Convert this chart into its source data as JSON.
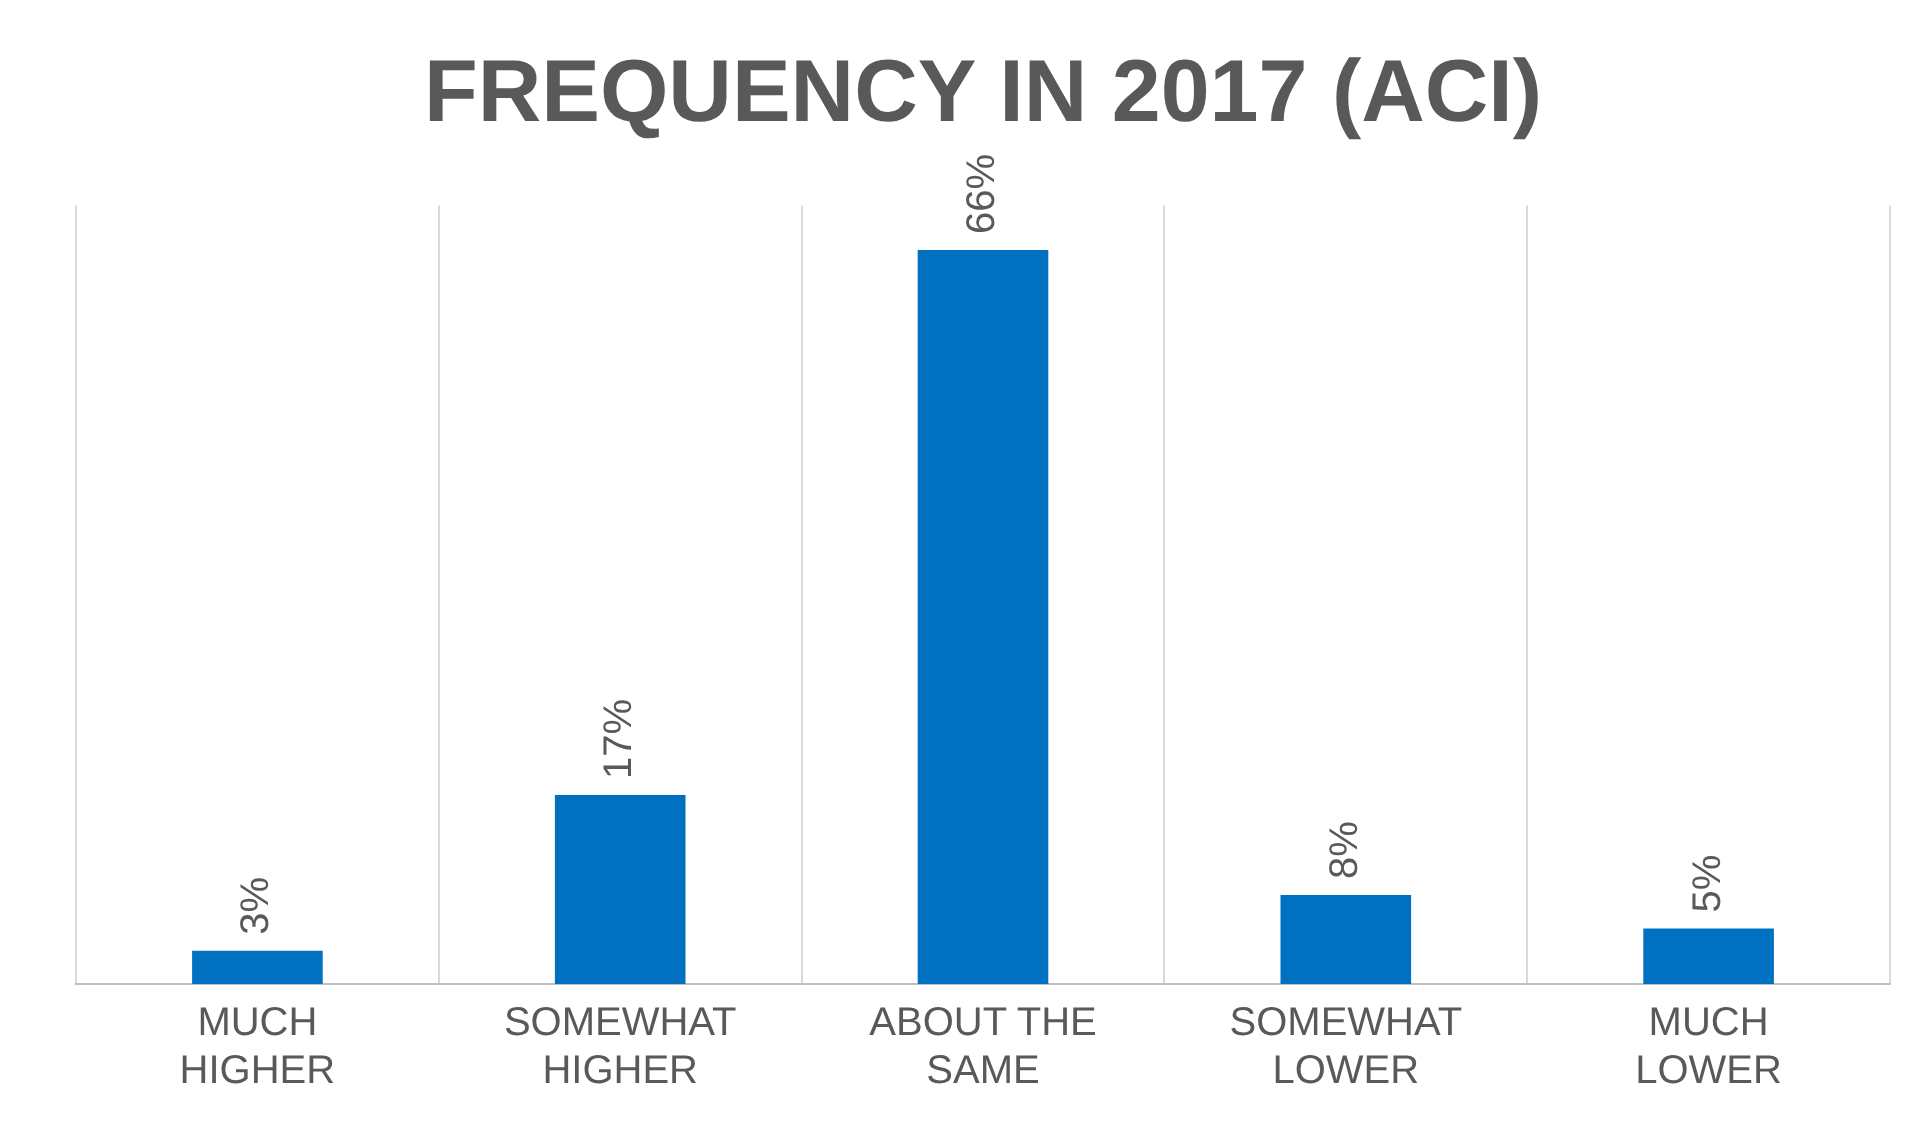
{
  "chart_data": {
    "type": "bar",
    "title": "FREQUENCY IN 2017 (ACI)",
    "categories": [
      "MUCH HIGHER",
      "SOMEWHAT HIGHER",
      "ABOUT THE SAME",
      "SOMEWHAT LOWER",
      "MUCH LOWER"
    ],
    "values": [
      3,
      17,
      66,
      8,
      5
    ],
    "value_labels": [
      "3%",
      "17%",
      "66%",
      "8%",
      "5%"
    ],
    "color": "#0070c0",
    "grid": "x",
    "tick_labels": "x"
  }
}
